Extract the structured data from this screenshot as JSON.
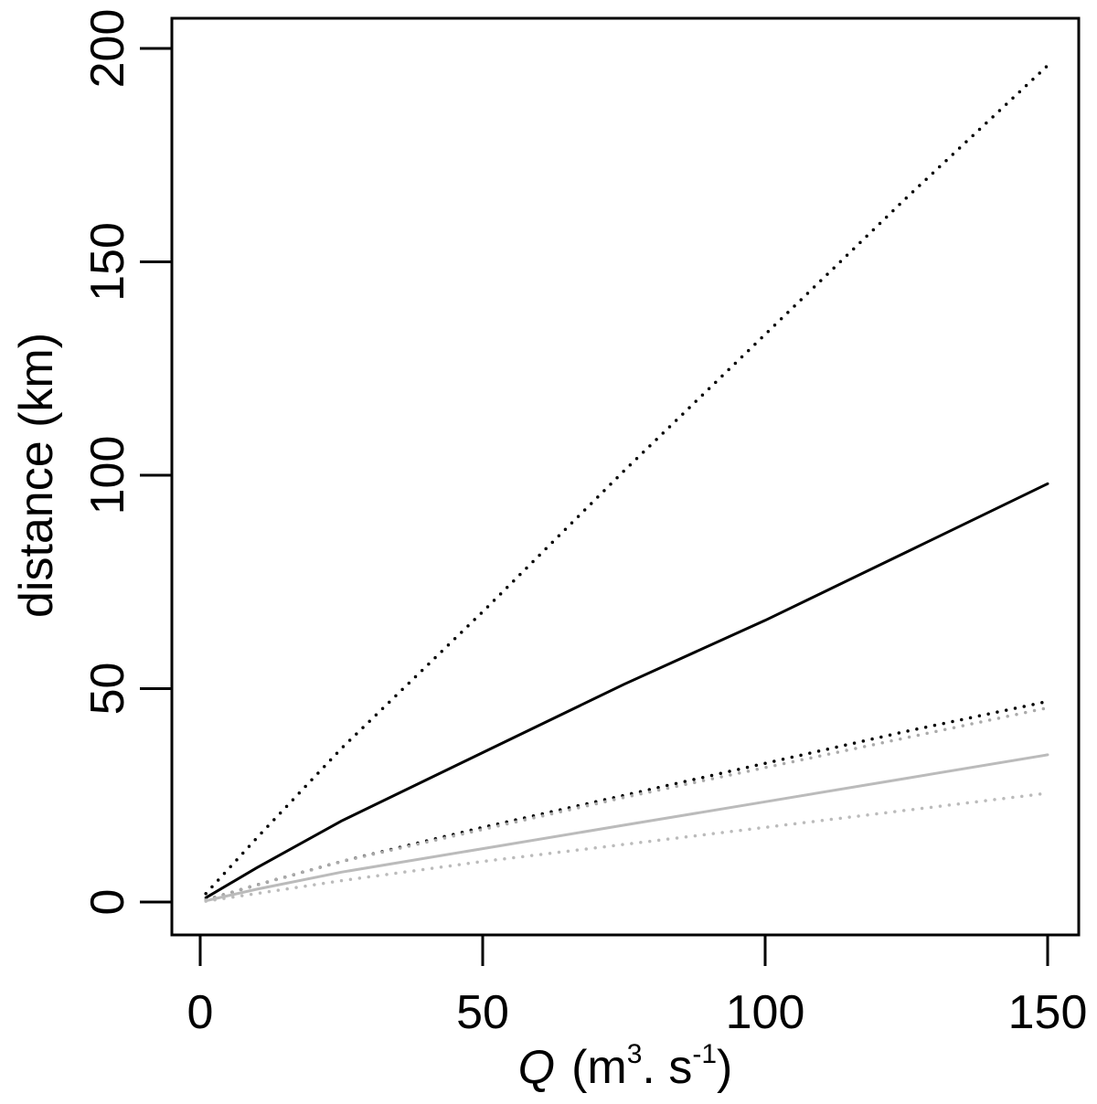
{
  "chart_data": {
    "type": "line",
    "title": "",
    "xlabel": {
      "symbol": "Q",
      "units_prefix": "(m",
      "sup1": "3",
      "units_mid": ". s",
      "sup2": "-1",
      "units_suffix": ")"
    },
    "ylabel": "distance (km)",
    "xlim": [
      0,
      150
    ],
    "ylim": [
      0,
      200
    ],
    "x_ticks": [
      0,
      50,
      100,
      150
    ],
    "y_ticks": [
      0,
      50,
      100,
      150,
      200
    ],
    "x_tick_labels": [
      "0",
      "50",
      "100",
      "150"
    ],
    "y_tick_labels": [
      "0",
      "50",
      "100",
      "150",
      "200"
    ],
    "grid": false,
    "legend": "none",
    "series": [
      {
        "color": "#000000",
        "dash": "dotted",
        "x": [
          1,
          10,
          25,
          50,
          75,
          100,
          125,
          150
        ],
        "y": [
          2,
          15,
          36,
          68,
          101,
          133,
          165,
          196
        ]
      },
      {
        "color": "#000000",
        "dash": "solid",
        "x": [
          1,
          10,
          25,
          50,
          75,
          100,
          125,
          150
        ],
        "y": [
          1,
          8,
          19,
          35,
          51,
          66,
          82,
          98
        ]
      },
      {
        "color": "#000000",
        "dash": "dotted",
        "x": [
          1,
          10,
          25,
          50,
          75,
          100,
          125,
          150
        ],
        "y": [
          0.5,
          4,
          9.5,
          17.5,
          25,
          32.5,
          40,
          47
        ]
      },
      {
        "color": "#aaaaaa",
        "dash": "dotted",
        "x": [
          1,
          10,
          25,
          50,
          75,
          100,
          125,
          150
        ],
        "y": [
          0.5,
          4,
          9.5,
          17,
          24.5,
          31.5,
          38.5,
          45.5
        ]
      },
      {
        "color": "#bbbbbb",
        "dash": "solid",
        "x": [
          1,
          10,
          25,
          50,
          75,
          100,
          125,
          150
        ],
        "y": [
          0.3,
          3,
          7,
          12.5,
          18,
          23.5,
          29,
          34.5
        ]
      },
      {
        "color": "#bbbbbb",
        "dash": "dotted",
        "x": [
          1,
          10,
          25,
          50,
          75,
          100,
          125,
          150
        ],
        "y": [
          0.2,
          2,
          5,
          9.5,
          13.5,
          17.5,
          21.5,
          25.5
        ]
      }
    ]
  }
}
